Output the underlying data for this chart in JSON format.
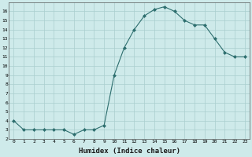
{
  "x": [
    0,
    1,
    2,
    3,
    4,
    5,
    6,
    7,
    8,
    9,
    10,
    11,
    12,
    13,
    14,
    15,
    16,
    17,
    18,
    19,
    20,
    21,
    22,
    23
  ],
  "y": [
    4.0,
    3.0,
    3.0,
    3.0,
    3.0,
    3.0,
    2.5,
    3.0,
    3.0,
    3.5,
    9.0,
    12.0,
    14.0,
    15.5,
    16.2,
    16.5,
    16.0,
    15.0,
    14.5,
    14.5,
    13.0,
    11.5,
    11.0,
    11.0
  ],
  "xlabel": "Humidex (Indice chaleur)",
  "ylim": [
    2,
    17
  ],
  "xlim": [
    -0.5,
    23.5
  ],
  "yticks": [
    2,
    3,
    4,
    5,
    6,
    7,
    8,
    9,
    10,
    11,
    12,
    13,
    14,
    15,
    16
  ],
  "xticks": [
    0,
    1,
    2,
    3,
    4,
    5,
    6,
    7,
    8,
    9,
    10,
    11,
    12,
    13,
    14,
    15,
    16,
    17,
    18,
    19,
    20,
    21,
    22,
    23
  ],
  "line_color": "#2d6e6e",
  "marker_color": "#2d6e6e",
  "bg_color": "#ceeaea",
  "grid_color": "#aacece"
}
